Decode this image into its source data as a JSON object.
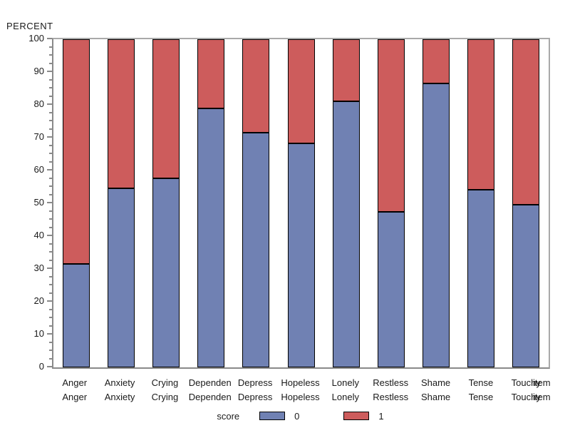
{
  "chart_data": {
    "type": "bar",
    "subtype": "stacked-100-percent",
    "ylabel": "PERCENT",
    "xlabel": "item",
    "ylim": [
      0,
      100
    ],
    "y_major_step": 10,
    "y_minor_ticks_per_interval": 3,
    "y_tick_labels": [
      "0",
      "10",
      "20",
      "30",
      "40",
      "50",
      "60",
      "70",
      "80",
      "90",
      "100"
    ],
    "grid": "off",
    "categories": [
      "Anger",
      "Anxiety",
      "Crying",
      "Dependen",
      "Depress",
      "Hopeless",
      "Lonely",
      "Restless",
      "Shame",
      "Tense",
      "Touchy"
    ],
    "x_axis_rows": 2,
    "x_axis_row_suffix": "item",
    "series": [
      {
        "name": "0",
        "color": "#7081B3",
        "values": [
          31.4,
          54.3,
          57.4,
          78.7,
          71.3,
          68.0,
          80.9,
          47.2,
          86.3,
          53.9,
          49.4
        ]
      },
      {
        "name": "1",
        "color": "#CD5C5C",
        "values": [
          68.6,
          45.7,
          42.6,
          21.3,
          28.7,
          32.0,
          19.1,
          52.8,
          13.7,
          46.1,
          50.6
        ]
      }
    ],
    "legend": {
      "label": "score",
      "position": "bottom-center"
    }
  },
  "colors": {
    "score0_blue": "#7081B3",
    "score1_red": "#CD5C5C",
    "bar_outline": "#000000",
    "axis_line": "#8a8a8a",
    "frame_line": "#a9a9a9",
    "text": "#1a1a1a",
    "background": "#ffffff"
  }
}
